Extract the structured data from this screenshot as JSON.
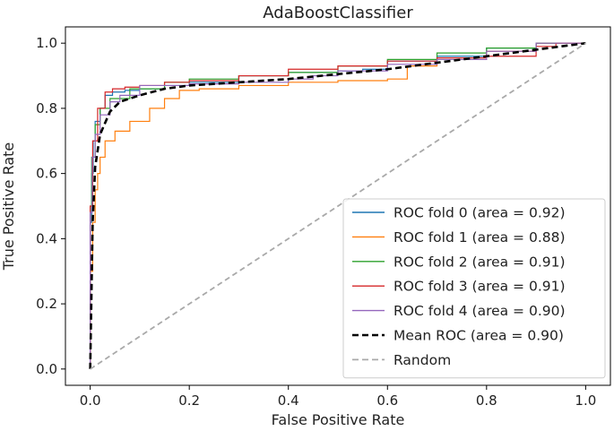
{
  "chart_data": {
    "type": "line",
    "title": "AdaBoostClassifier",
    "xlabel": "False Positive Rate",
    "ylabel": "True Positive Rate",
    "xlim": [
      -0.05,
      1.05
    ],
    "ylim": [
      -0.05,
      1.05
    ],
    "xticks": [
      "0.0",
      "0.2",
      "0.4",
      "0.6",
      "0.8",
      "1.0"
    ],
    "yticks": [
      "0.0",
      "0.2",
      "0.4",
      "0.6",
      "0.8",
      "1.0"
    ],
    "grid": false,
    "legend_position": "lower-right",
    "series": [
      {
        "name": "ROC fold 0 (area = 0.92)",
        "color": "#1f77b4",
        "style": "solid",
        "points": [
          [
            0,
            0
          ],
          [
            0.003,
            0.45
          ],
          [
            0.006,
            0.6
          ],
          [
            0.01,
            0.7
          ],
          [
            0.02,
            0.76
          ],
          [
            0.03,
            0.8
          ],
          [
            0.045,
            0.84
          ],
          [
            0.07,
            0.85
          ],
          [
            0.1,
            0.855
          ],
          [
            0.15,
            0.86
          ],
          [
            0.2,
            0.87
          ],
          [
            0.3,
            0.88
          ],
          [
            0.4,
            0.9
          ],
          [
            0.5,
            0.91
          ],
          [
            0.55,
            0.915
          ],
          [
            0.6,
            0.92
          ],
          [
            0.7,
            0.945
          ],
          [
            0.8,
            0.96
          ],
          [
            0.9,
            0.985
          ],
          [
            0.96,
            1.0
          ],
          [
            1.0,
            1.0
          ]
        ]
      },
      {
        "name": "ROC fold 1 (area = 0.88)",
        "color": "#ff7f0e",
        "style": "solid",
        "points": [
          [
            0,
            0
          ],
          [
            0.005,
            0.3
          ],
          [
            0.01,
            0.45
          ],
          [
            0.015,
            0.55
          ],
          [
            0.02,
            0.6
          ],
          [
            0.03,
            0.65
          ],
          [
            0.05,
            0.7
          ],
          [
            0.08,
            0.73
          ],
          [
            0.12,
            0.76
          ],
          [
            0.15,
            0.8
          ],
          [
            0.18,
            0.83
          ],
          [
            0.22,
            0.855
          ],
          [
            0.3,
            0.86
          ],
          [
            0.4,
            0.87
          ],
          [
            0.5,
            0.88
          ],
          [
            0.6,
            0.885
          ],
          [
            0.64,
            0.89
          ],
          [
            0.7,
            0.93
          ],
          [
            0.8,
            0.95
          ],
          [
            0.9,
            0.975
          ],
          [
            0.96,
            1.0
          ],
          [
            1.0,
            1.0
          ]
        ]
      },
      {
        "name": "ROC fold 2 (area = 0.91)",
        "color": "#2ca02c",
        "style": "solid",
        "points": [
          [
            0,
            0
          ],
          [
            0.003,
            0.5
          ],
          [
            0.01,
            0.65
          ],
          [
            0.02,
            0.75
          ],
          [
            0.04,
            0.8
          ],
          [
            0.08,
            0.83
          ],
          [
            0.15,
            0.86
          ],
          [
            0.2,
            0.88
          ],
          [
            0.3,
            0.89
          ],
          [
            0.4,
            0.9
          ],
          [
            0.5,
            0.91
          ],
          [
            0.6,
            0.93
          ],
          [
            0.7,
            0.95
          ],
          [
            0.8,
            0.97
          ],
          [
            0.9,
            0.985
          ],
          [
            0.95,
            1.0
          ],
          [
            1.0,
            1.0
          ]
        ]
      },
      {
        "name": "ROC fold 3 (area = 0.91)",
        "color": "#d62728",
        "style": "solid",
        "points": [
          [
            0,
            0
          ],
          [
            0.005,
            0.5
          ],
          [
            0.015,
            0.7
          ],
          [
            0.03,
            0.8
          ],
          [
            0.045,
            0.85
          ],
          [
            0.07,
            0.86
          ],
          [
            0.1,
            0.865
          ],
          [
            0.15,
            0.87
          ],
          [
            0.2,
            0.88
          ],
          [
            0.3,
            0.885
          ],
          [
            0.4,
            0.9
          ],
          [
            0.5,
            0.92
          ],
          [
            0.6,
            0.93
          ],
          [
            0.7,
            0.945
          ],
          [
            0.8,
            0.955
          ],
          [
            0.9,
            0.96
          ],
          [
            0.94,
            0.99
          ],
          [
            0.98,
            1.0
          ],
          [
            1.0,
            1.0
          ]
        ]
      },
      {
        "name": "ROC fold 4 (area = 0.90)",
        "color": "#9467bd",
        "style": "solid",
        "points": [
          [
            0,
            0
          ],
          [
            0.004,
            0.48
          ],
          [
            0.01,
            0.65
          ],
          [
            0.02,
            0.72
          ],
          [
            0.04,
            0.78
          ],
          [
            0.06,
            0.82
          ],
          [
            0.1,
            0.84
          ],
          [
            0.2,
            0.87
          ],
          [
            0.3,
            0.875
          ],
          [
            0.4,
            0.88
          ],
          [
            0.45,
            0.89
          ],
          [
            0.5,
            0.9
          ],
          [
            0.6,
            0.915
          ],
          [
            0.7,
            0.935
          ],
          [
            0.8,
            0.95
          ],
          [
            0.9,
            0.975
          ],
          [
            0.96,
            1.0
          ],
          [
            1.0,
            1.0
          ]
        ]
      },
      {
        "name": "Mean ROC (area = 0.90)",
        "color": "#000000",
        "style": "dashed",
        "points": [
          [
            0,
            0
          ],
          [
            0.005,
            0.45
          ],
          [
            0.01,
            0.62
          ],
          [
            0.02,
            0.72
          ],
          [
            0.04,
            0.79
          ],
          [
            0.06,
            0.82
          ],
          [
            0.1,
            0.84
          ],
          [
            0.15,
            0.86
          ],
          [
            0.2,
            0.87
          ],
          [
            0.3,
            0.88
          ],
          [
            0.4,
            0.89
          ],
          [
            0.5,
            0.905
          ],
          [
            0.6,
            0.92
          ],
          [
            0.7,
            0.94
          ],
          [
            0.8,
            0.96
          ],
          [
            0.9,
            0.98
          ],
          [
            1.0,
            1.0
          ]
        ]
      },
      {
        "name": "Random",
        "color": "#a9a9a9",
        "style": "dashed",
        "points": [
          [
            0,
            0
          ],
          [
            1,
            1
          ]
        ]
      }
    ]
  }
}
